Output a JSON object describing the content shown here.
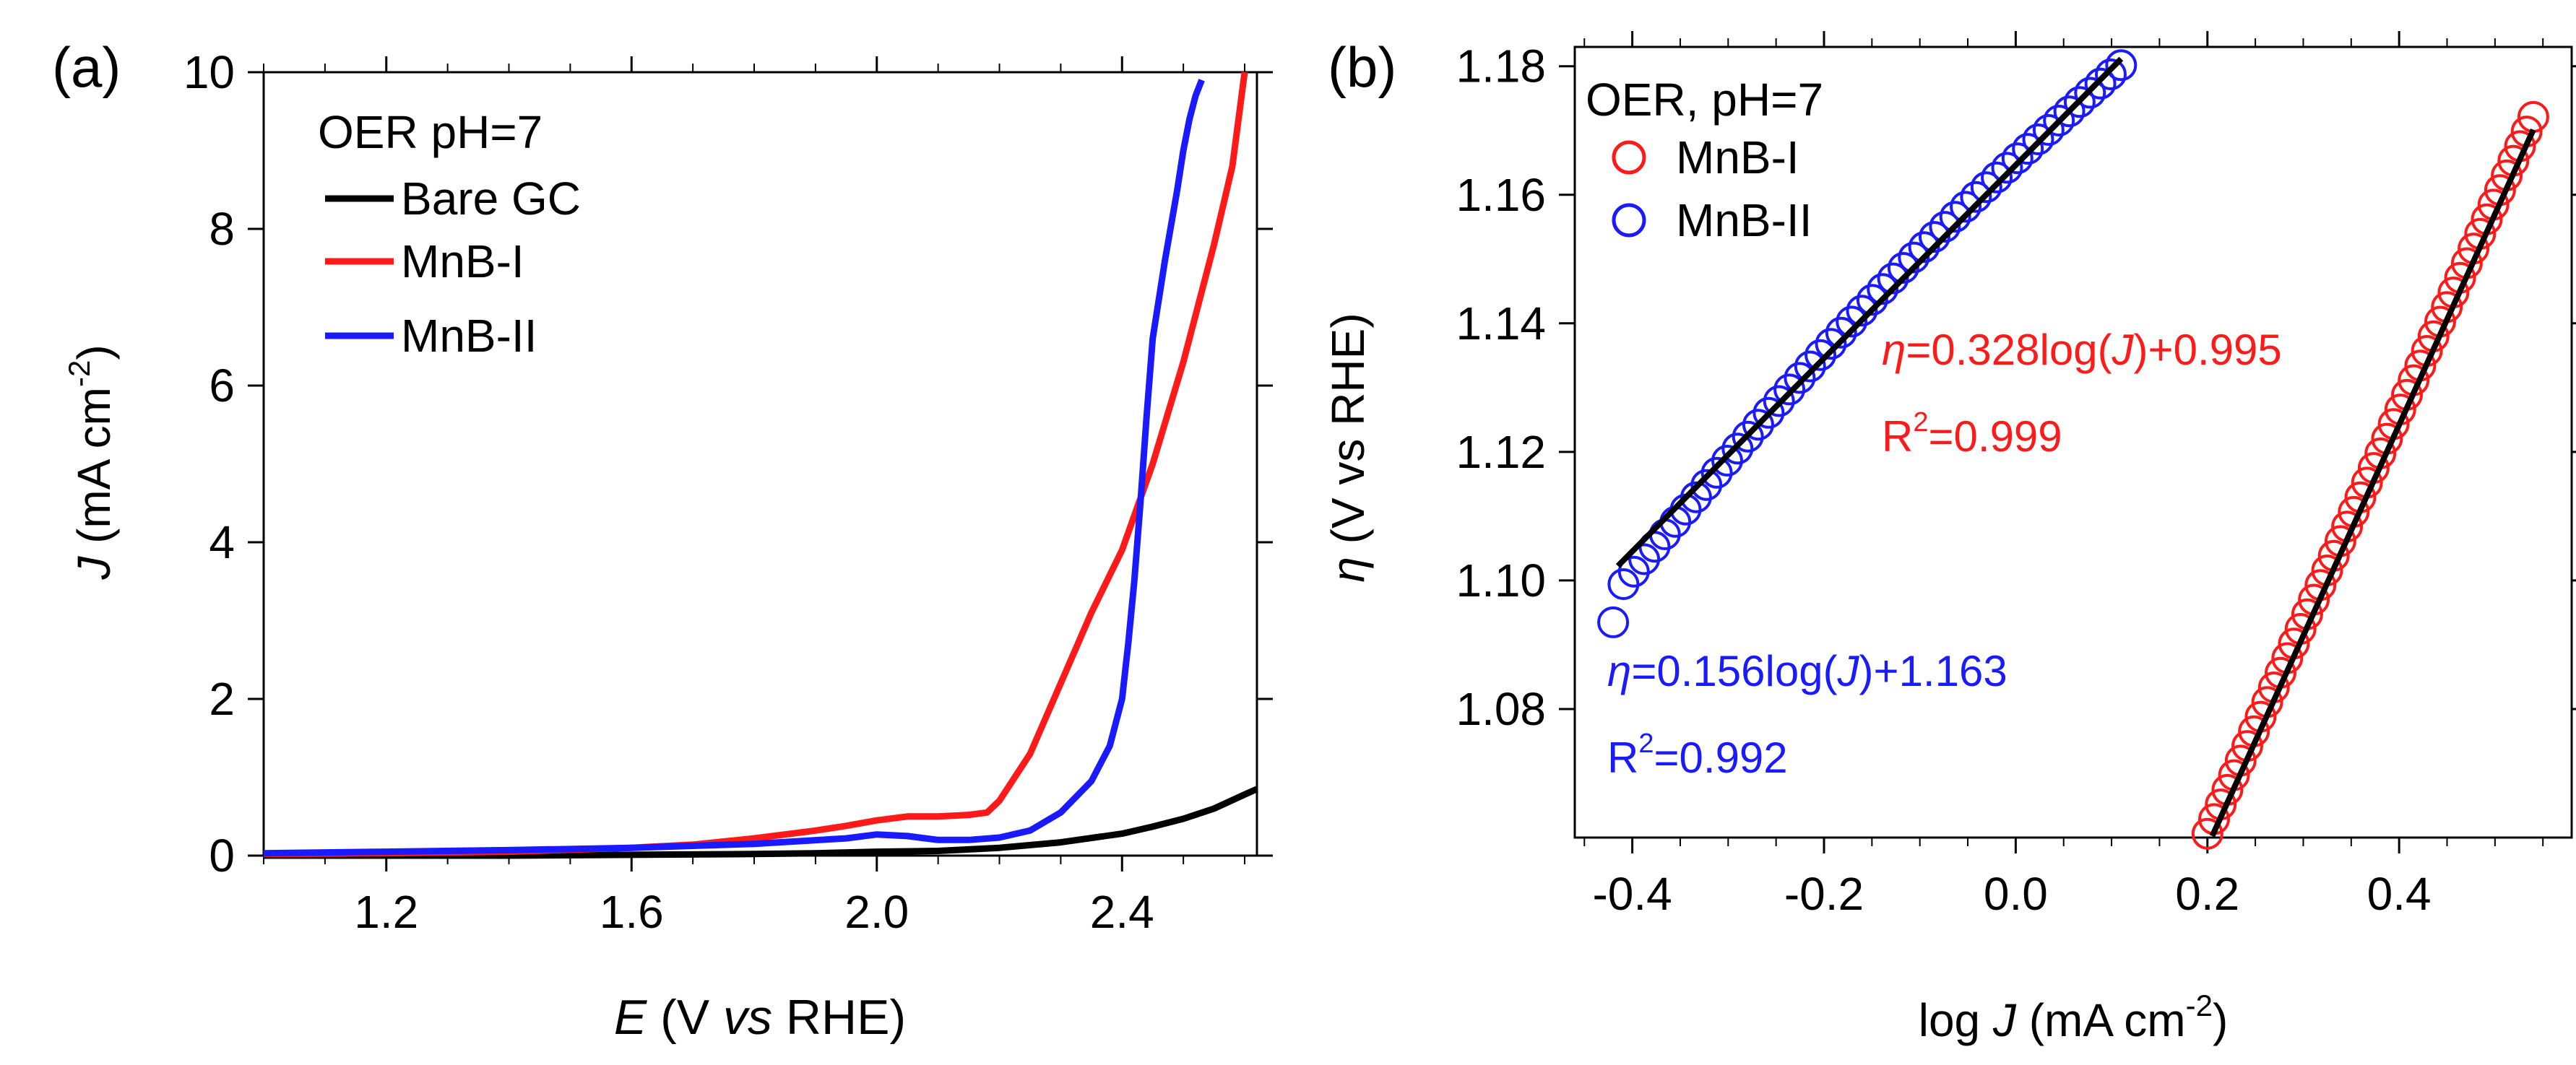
{
  "colors": {
    "black": "#000000",
    "red": "#ff1a1a",
    "blue": "#1a1aff"
  },
  "chart_data": [
    {
      "panel_label": "(a)",
      "type": "line",
      "title": "",
      "xlabel_italic": "E",
      "xlabel_rest": " (V vs RHE)",
      "xlabel_vs": "vs",
      "ylabel_italic": "J",
      "ylabel_rest": " (mA cm",
      "ylabel_sup": "-2",
      "ylabel_close": ")",
      "xlim": [
        1.0,
        2.62
      ],
      "ylim": [
        0,
        10
      ],
      "xticks": [
        1.2,
        1.6,
        2.0,
        2.4
      ],
      "xtick_labels": [
        "1.2",
        "1.6",
        "2.0",
        "2.4"
      ],
      "yticks": [
        0,
        2,
        4,
        6,
        8,
        10
      ],
      "ytick_labels": [
        "0",
        "2",
        "4",
        "6",
        "8",
        "10"
      ],
      "legend_title": "OER pH=7",
      "legend_position": "top-left",
      "series": [
        {
          "name": "Bare GC",
          "color": "#000000",
          "x": [
            1.0,
            1.2,
            1.4,
            1.6,
            1.8,
            1.9,
            2.0,
            2.1,
            2.2,
            2.3,
            2.4,
            2.45,
            2.5,
            2.55,
            2.6,
            2.62
          ],
          "y": [
            0.0,
            0.0,
            0.0,
            0.01,
            0.02,
            0.03,
            0.05,
            0.06,
            0.1,
            0.17,
            0.28,
            0.37,
            0.47,
            0.6,
            0.78,
            0.85
          ]
        },
        {
          "name": "MnB-I",
          "color": "#ff1a1a",
          "x": [
            1.0,
            1.2,
            1.4,
            1.6,
            1.7,
            1.8,
            1.9,
            1.95,
            2.0,
            2.05,
            2.1,
            2.15,
            2.18,
            2.2,
            2.25,
            2.3,
            2.35,
            2.4,
            2.45,
            2.5,
            2.55,
            2.58,
            2.6
          ],
          "y": [
            0.02,
            0.03,
            0.05,
            0.1,
            0.14,
            0.22,
            0.32,
            0.38,
            0.45,
            0.5,
            0.5,
            0.52,
            0.55,
            0.7,
            1.3,
            2.2,
            3.1,
            3.9,
            5.0,
            6.3,
            7.8,
            8.8,
            10.0
          ]
        },
        {
          "name": "MnB-II",
          "color": "#1a1aff",
          "x": [
            1.0,
            1.2,
            1.4,
            1.6,
            1.8,
            1.95,
            2.0,
            2.05,
            2.1,
            2.15,
            2.2,
            2.25,
            2.3,
            2.35,
            2.38,
            2.4,
            2.41,
            2.42,
            2.43,
            2.44,
            2.45,
            2.47,
            2.49,
            2.5,
            2.51,
            2.52,
            2.53
          ],
          "y": [
            0.03,
            0.05,
            0.07,
            0.1,
            0.15,
            0.22,
            0.27,
            0.25,
            0.2,
            0.2,
            0.23,
            0.32,
            0.55,
            0.95,
            1.4,
            2.0,
            2.7,
            3.5,
            4.5,
            5.6,
            6.6,
            7.6,
            8.5,
            9.0,
            9.4,
            9.7,
            9.9
          ]
        }
      ]
    },
    {
      "panel_label": "(b)",
      "type": "scatter",
      "title": "",
      "xlabel_pre": "log ",
      "xlabel_italic": "J",
      "xlabel_rest": " (mA cm",
      "xlabel_sup": "-2",
      "xlabel_close": ")",
      "ylabel_italic": "η",
      "ylabel_rest": " (V vs RHE)",
      "xlim": [
        -0.46,
        0.58
      ],
      "ylim": [
        1.06,
        1.183
      ],
      "xticks": [
        -0.4,
        -0.2,
        0.0,
        0.2,
        0.4
      ],
      "xtick_labels": [
        "-0.4",
        "-0.2",
        "0.0",
        "0.2",
        "0.4"
      ],
      "yticks": [
        1.08,
        1.1,
        1.12,
        1.14,
        1.16,
        1.18
      ],
      "ytick_labels": [
        "1.08",
        "1.10",
        "1.12",
        "1.14",
        "1.16",
        "1.18"
      ],
      "legend_title": "OER, pH=7",
      "legend_position": "top-left",
      "series": [
        {
          "name": "MnB-I",
          "color": "#ff1a1a",
          "marker": "open-circle",
          "x_range": [
            0.2,
            0.54
          ],
          "fit_slope": 0.328,
          "fit_intercept": 0.995,
          "fit_line_x": [
            0.205,
            0.54
          ],
          "equation_pre": "=0.328log(",
          "equation_var": "J",
          "equation_post": ")+0.995",
          "r2_label": "R",
          "r2_sup": "2",
          "r2_value": "=0.999"
        },
        {
          "name": "MnB-II",
          "color": "#1a1aff",
          "marker": "open-circle",
          "x_range": [
            -0.42,
            0.11
          ],
          "fit_slope": 0.156,
          "fit_intercept": 1.163,
          "fit_line_x": [
            -0.415,
            0.11
          ],
          "equation_pre": "=0.156log(",
          "equation_var": "J",
          "equation_post": ")+1.163",
          "r2_label": "R",
          "r2_sup": "2",
          "r2_value": "=0.992"
        }
      ]
    }
  ]
}
